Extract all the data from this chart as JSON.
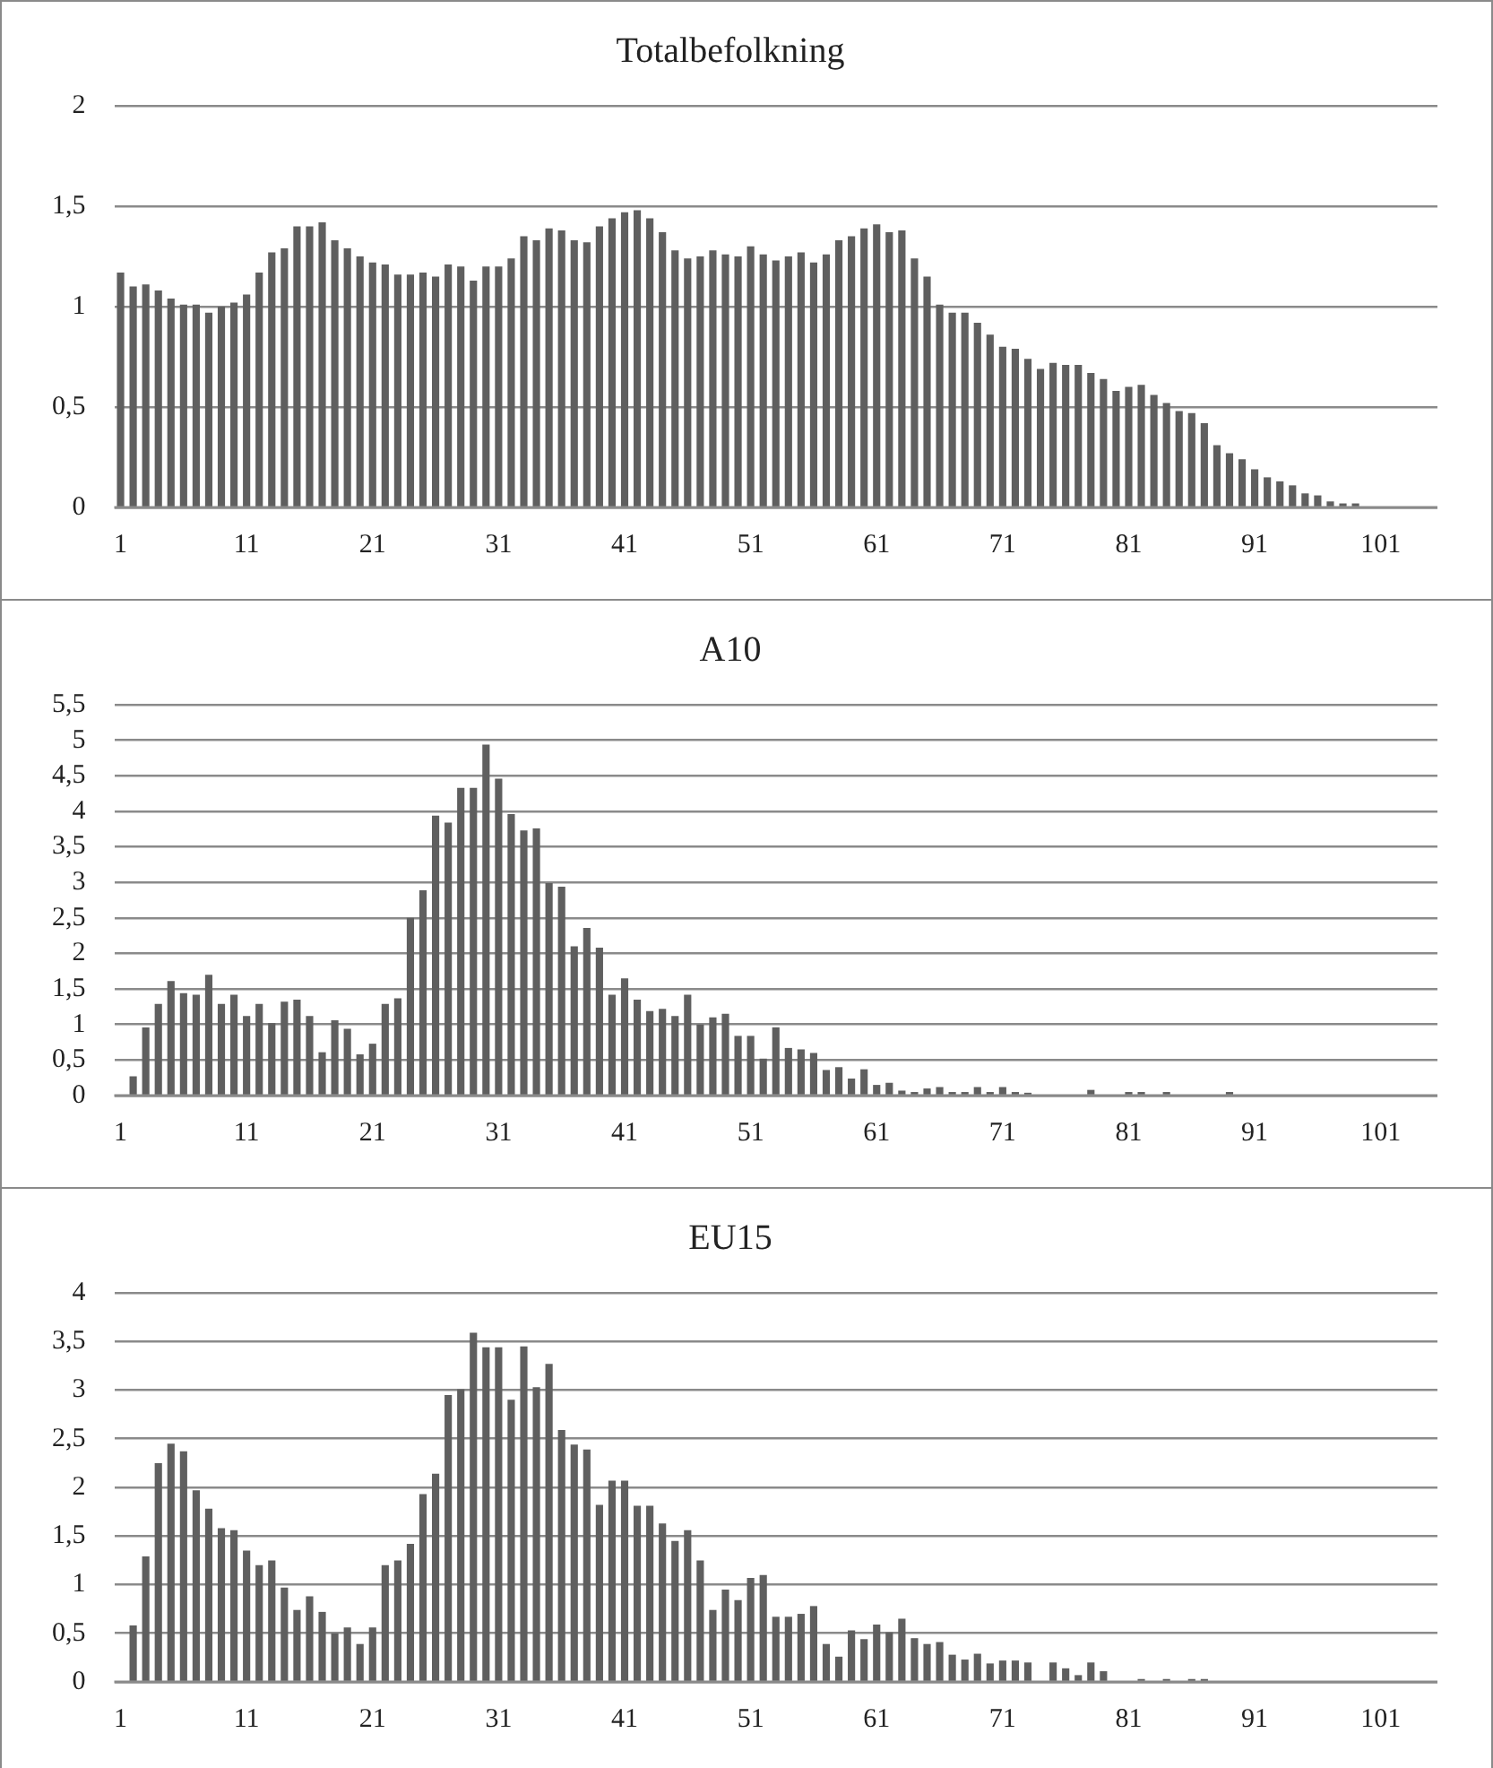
{
  "chart_data": [
    {
      "type": "bar",
      "title": "Totalbefolkning",
      "categories": [
        "1",
        null,
        null,
        null,
        null,
        null,
        null,
        null,
        null,
        null,
        "11",
        null,
        null,
        null,
        null,
        null,
        null,
        null,
        null,
        null,
        "21",
        null,
        null,
        null,
        null,
        null,
        null,
        null,
        null,
        null,
        "31",
        null,
        null,
        null,
        null,
        null,
        null,
        null,
        null,
        null,
        "41",
        null,
        null,
        null,
        null,
        null,
        null,
        null,
        null,
        null,
        "51",
        null,
        null,
        null,
        null,
        null,
        null,
        null,
        null,
        null,
        "61",
        null,
        null,
        null,
        null,
        null,
        null,
        null,
        null,
        null,
        "71",
        null,
        null,
        null,
        null,
        null,
        null,
        null,
        null,
        null,
        "81",
        null,
        null,
        null,
        null,
        null,
        null,
        null,
        null,
        null,
        "91",
        null,
        null,
        null,
        null,
        null,
        null,
        null,
        null,
        null,
        "101",
        null,
        null,
        null,
        null
      ],
      "values": [
        1.17,
        1.1,
        1.11,
        1.08,
        1.04,
        1.01,
        1.01,
        0.97,
        1.0,
        1.02,
        1.06,
        1.17,
        1.27,
        1.29,
        1.4,
        1.4,
        1.42,
        1.33,
        1.29,
        1.25,
        1.22,
        1.21,
        1.16,
        1.16,
        1.17,
        1.15,
        1.21,
        1.2,
        1.13,
        1.2,
        1.2,
        1.24,
        1.35,
        1.33,
        1.39,
        1.38,
        1.33,
        1.32,
        1.4,
        1.44,
        1.47,
        1.48,
        1.44,
        1.37,
        1.28,
        1.24,
        1.25,
        1.28,
        1.26,
        1.25,
        1.3,
        1.26,
        1.23,
        1.25,
        1.27,
        1.22,
        1.26,
        1.33,
        1.35,
        1.39,
        1.41,
        1.37,
        1.38,
        1.24,
        1.15,
        1.01,
        0.97,
        0.97,
        0.92,
        0.86,
        0.8,
        0.79,
        0.74,
        0.69,
        0.72,
        0.71,
        0.71,
        0.67,
        0.64,
        0.58,
        0.6,
        0.61,
        0.56,
        0.52,
        0.48,
        0.47,
        0.42,
        0.31,
        0.27,
        0.24,
        0.19,
        0.15,
        0.13,
        0.11,
        0.07,
        0.06,
        0.03,
        0.02,
        0.02,
        0,
        0,
        0,
        0,
        0,
        0
      ],
      "color": "#5f5f5f",
      "ylim": [
        0,
        2
      ],
      "yticks": [
        0,
        {
          "value": 0.5,
          "label": "0,5"
        },
        1,
        {
          "value": 1.5,
          "label": "1,5"
        },
        2
      ],
      "grid": "y"
    },
    {
      "type": "bar",
      "title": "A10",
      "categories": [
        "1",
        null,
        null,
        null,
        null,
        null,
        null,
        null,
        null,
        null,
        "11",
        null,
        null,
        null,
        null,
        null,
        null,
        null,
        null,
        null,
        "21",
        null,
        null,
        null,
        null,
        null,
        null,
        null,
        null,
        null,
        "31",
        null,
        null,
        null,
        null,
        null,
        null,
        null,
        null,
        null,
        "41",
        null,
        null,
        null,
        null,
        null,
        null,
        null,
        null,
        null,
        "51",
        null,
        null,
        null,
        null,
        null,
        null,
        null,
        null,
        null,
        "61",
        null,
        null,
        null,
        null,
        null,
        null,
        null,
        null,
        null,
        "71",
        null,
        null,
        null,
        null,
        null,
        null,
        null,
        null,
        null,
        "81",
        null,
        null,
        null,
        null,
        null,
        null,
        null,
        null,
        null,
        "91",
        null,
        null,
        null,
        null,
        null,
        null,
        null,
        null,
        null,
        "101",
        null,
        null,
        null,
        null
      ],
      "values": [
        0,
        0.27,
        0.96,
        1.29,
        1.61,
        1.44,
        1.42,
        1.7,
        1.29,
        1.42,
        1.12,
        1.29,
        1.02,
        1.32,
        1.35,
        1.12,
        0.61,
        1.06,
        0.94,
        0.58,
        0.73,
        1.29,
        1.37,
        2.5,
        2.89,
        3.94,
        3.84,
        4.33,
        4.33,
        4.94,
        4.46,
        3.96,
        3.73,
        3.76,
        2.99,
        2.94,
        2.1,
        2.36,
        2.08,
        1.42,
        1.65,
        1.35,
        1.19,
        1.22,
        1.12,
        1.42,
        1.0,
        1.1,
        1.15,
        0.84,
        0.84,
        0.52,
        0.96,
        0.67,
        0.65,
        0.6,
        0.36,
        0.4,
        0.24,
        0.37,
        0.15,
        0.18,
        0.07,
        0.05,
        0.1,
        0.12,
        0.05,
        0.05,
        0.12,
        0.05,
        0.12,
        0.05,
        0.04,
        0,
        0,
        0,
        0,
        0.08,
        0,
        0,
        0.05,
        0.05,
        0,
        0.05,
        0,
        0,
        0,
        0,
        0.05,
        0,
        0,
        0,
        0,
        0,
        0,
        0,
        0,
        0,
        0,
        0,
        0,
        0,
        0,
        0,
        0
      ],
      "color": "#5f5f5f",
      "ylim": [
        0,
        5.5
      ],
      "yticks": [
        0,
        {
          "value": 0.5,
          "label": "0,5"
        },
        1,
        {
          "value": 1.5,
          "label": "1,5"
        },
        2,
        {
          "value": 2.5,
          "label": "2,5"
        },
        3,
        {
          "value": 3.5,
          "label": "3,5"
        },
        4,
        {
          "value": 4.5,
          "label": "4,5"
        },
        5,
        {
          "value": 5.5,
          "label": "5,5"
        }
      ],
      "grid": "y"
    },
    {
      "type": "bar",
      "title": "EU15",
      "categories": [
        "1",
        null,
        null,
        null,
        null,
        null,
        null,
        null,
        null,
        null,
        "11",
        null,
        null,
        null,
        null,
        null,
        null,
        null,
        null,
        null,
        "21",
        null,
        null,
        null,
        null,
        null,
        null,
        null,
        null,
        null,
        "31",
        null,
        null,
        null,
        null,
        null,
        null,
        null,
        null,
        null,
        "41",
        null,
        null,
        null,
        null,
        null,
        null,
        null,
        null,
        null,
        "51",
        null,
        null,
        null,
        null,
        null,
        null,
        null,
        null,
        null,
        "61",
        null,
        null,
        null,
        null,
        null,
        null,
        null,
        null,
        null,
        "71",
        null,
        null,
        null,
        null,
        null,
        null,
        null,
        null,
        null,
        "81",
        null,
        null,
        null,
        null,
        null,
        null,
        null,
        null,
        null,
        "91",
        null,
        null,
        null,
        null,
        null,
        null,
        null,
        null,
        null,
        "101",
        null,
        null,
        null,
        null
      ],
      "values": [
        0,
        0.58,
        1.29,
        2.25,
        2.45,
        2.37,
        1.97,
        1.78,
        1.58,
        1.56,
        1.35,
        1.2,
        1.25,
        0.97,
        0.74,
        0.88,
        0.72,
        0.5,
        0.56,
        0.39,
        0.56,
        1.2,
        1.25,
        1.42,
        1.93,
        2.14,
        2.95,
        3.01,
        3.59,
        3.44,
        3.44,
        2.9,
        3.45,
        3.03,
        3.27,
        2.59,
        2.44,
        2.39,
        1.82,
        2.07,
        2.07,
        1.81,
        1.81,
        1.63,
        1.45,
        1.56,
        1.25,
        0.74,
        0.95,
        0.84,
        1.07,
        1.1,
        0.67,
        0.67,
        0.7,
        0.78,
        0.39,
        0.26,
        0.53,
        0.44,
        0.59,
        0.51,
        0.65,
        0.45,
        0.39,
        0.41,
        0.28,
        0.23,
        0.29,
        0.19,
        0.22,
        0.22,
        0.2,
        0,
        0.2,
        0.14,
        0.07,
        0.2,
        0.11,
        0,
        0,
        0.03,
        0,
        0.03,
        0,
        0.03,
        0.03,
        0,
        0,
        0,
        0,
        0,
        0,
        0,
        0,
        0,
        0,
        0,
        0,
        0,
        0,
        0,
        0,
        0,
        0
      ],
      "color": "#5f5f5f",
      "ylim": [
        0,
        4
      ],
      "yticks": [
        0,
        {
          "value": 0.5,
          "label": "0,5"
        },
        1,
        {
          "value": 1.5,
          "label": "1,5"
        },
        2,
        {
          "value": 2.5,
          "label": "2,5"
        },
        3,
        {
          "value": 3.5,
          "label": "3,5"
        },
        4
      ],
      "grid": "y"
    }
  ]
}
